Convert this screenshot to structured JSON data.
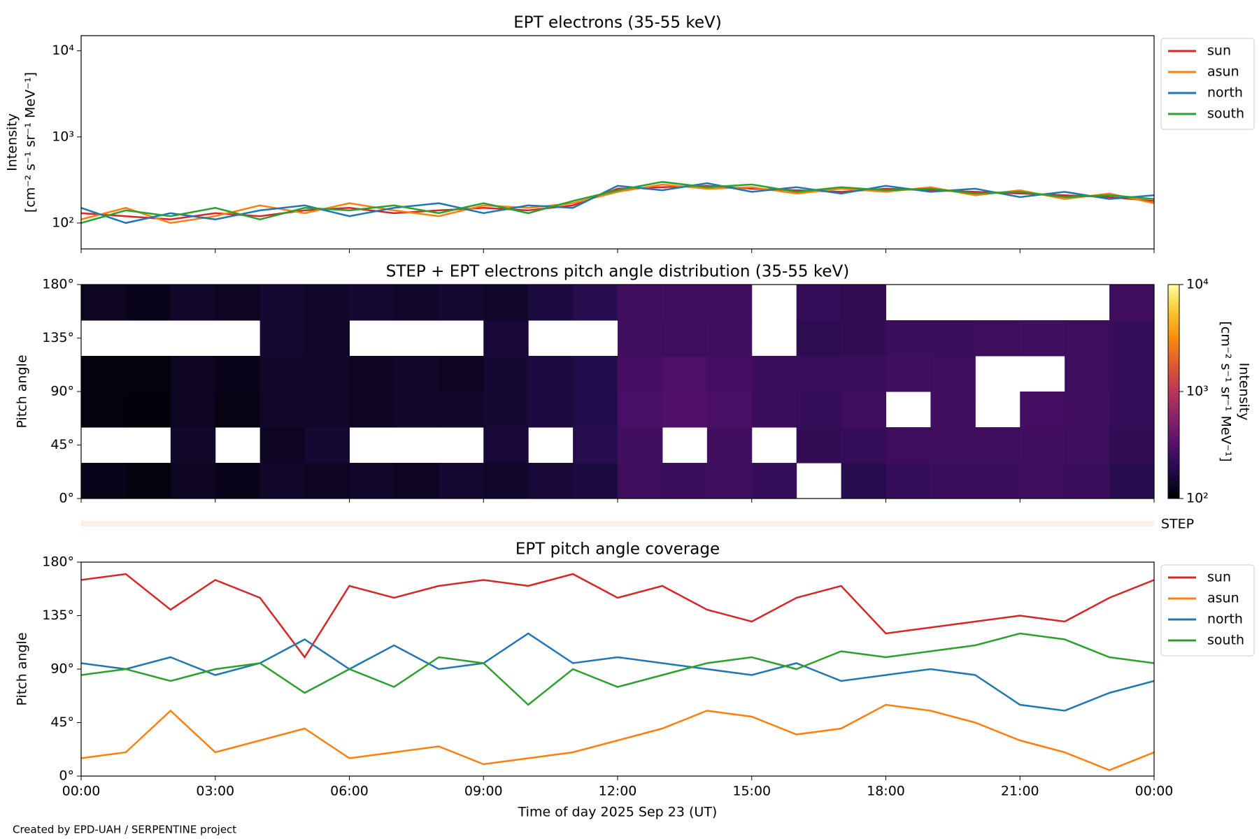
{
  "chart_data": [
    {
      "type": "line",
      "title": "EPT electrons (35-55 keV)",
      "ylabel": [
        "Intensity",
        "[cm⁻² s⁻¹ sr⁻¹ MeV⁻¹]"
      ],
      "log_y": true,
      "ylim": [
        50,
        15000
      ],
      "yticks": [
        {
          "value": 100,
          "label": "10²"
        },
        {
          "value": 1000,
          "label": "10³"
        },
        {
          "value": 10000,
          "label": "10⁴"
        }
      ],
      "xlim": [
        0,
        24
      ],
      "xticks": [
        0,
        3,
        6,
        9,
        12,
        15,
        18,
        21,
        24
      ],
      "x": [
        0,
        1,
        2,
        3,
        4,
        5,
        6,
        7,
        8,
        9,
        10,
        11,
        12,
        13,
        14,
        15,
        16,
        17,
        18,
        19,
        20,
        21,
        22,
        23,
        24
      ],
      "series": [
        {
          "name": "sun",
          "color": "#d62728",
          "values": [
            130,
            120,
            110,
            130,
            120,
            140,
            150,
            130,
            140,
            150,
            140,
            160,
            250,
            260,
            270,
            250,
            240,
            230,
            250,
            240,
            230,
            220,
            210,
            200,
            180
          ]
        },
        {
          "name": "asun",
          "color": "#ff7f0e",
          "values": [
            110,
            150,
            100,
            120,
            160,
            130,
            170,
            140,
            120,
            160,
            150,
            170,
            230,
            280,
            250,
            260,
            220,
            250,
            230,
            260,
            210,
            240,
            190,
            220,
            170
          ]
        },
        {
          "name": "north",
          "color": "#1f77b4",
          "values": [
            150,
            100,
            130,
            110,
            140,
            160,
            120,
            150,
            170,
            130,
            160,
            150,
            270,
            240,
            290,
            230,
            260,
            220,
            270,
            230,
            250,
            200,
            230,
            190,
            210
          ]
        },
        {
          "name": "south",
          "color": "#2ca02c",
          "values": [
            100,
            140,
            120,
            150,
            110,
            150,
            140,
            160,
            130,
            170,
            130,
            180,
            240,
            300,
            260,
            280,
            230,
            260,
            240,
            250,
            220,
            230,
            200,
            210,
            190
          ]
        }
      ]
    },
    {
      "type": "heatmap",
      "title": "STEP + EPT electrons pitch angle distribution (35-55 keV)",
      "ylabel": "Pitch angle",
      "ylim": [
        0,
        180
      ],
      "yticks": [
        {
          "value": 0,
          "label": "0°"
        },
        {
          "value": 45,
          "label": "45°"
        },
        {
          "value": 90,
          "label": "90°"
        },
        {
          "value": 135,
          "label": "135°"
        },
        {
          "value": 180,
          "label": "180°"
        }
      ],
      "xlim": [
        0,
        24
      ],
      "xticks": [
        0,
        3,
        6,
        9,
        12,
        15,
        18,
        21,
        24
      ],
      "x_edges": [
        0,
        1,
        2,
        3,
        4,
        5,
        6,
        7,
        8,
        9,
        10,
        11,
        12,
        13,
        14,
        15,
        16,
        17,
        18,
        19,
        20,
        21,
        22,
        23,
        24
      ],
      "y_edges": [
        0,
        30,
        60,
        90,
        120,
        150,
        180
      ],
      "z": [
        [
          120,
          null,
          110,
          110,
          null,
          130
        ],
        [
          110,
          null,
          105,
          110,
          null,
          120
        ],
        [
          130,
          140,
          130,
          130,
          null,
          140
        ],
        [
          120,
          null,
          115,
          120,
          null,
          130
        ],
        [
          140,
          130,
          140,
          140,
          150,
          150
        ],
        [
          130,
          150,
          140,
          140,
          140,
          140
        ],
        [
          140,
          null,
          130,
          130,
          null,
          150
        ],
        [
          130,
          null,
          140,
          140,
          null,
          140
        ],
        [
          150,
          null,
          140,
          130,
          null,
          150
        ],
        [
          140,
          160,
          150,
          150,
          160,
          140
        ],
        [
          160,
          null,
          170,
          170,
          null,
          170
        ],
        [
          170,
          200,
          190,
          190,
          null,
          200
        ],
        [
          250,
          260,
          280,
          270,
          260,
          250
        ],
        [
          240,
          null,
          300,
          290,
          250,
          260
        ],
        [
          250,
          260,
          280,
          270,
          260,
          260
        ],
        [
          230,
          null,
          240,
          240,
          null,
          null
        ],
        [
          null,
          220,
          230,
          240,
          210,
          230
        ],
        [
          200,
          230,
          250,
          240,
          220,
          220
        ],
        [
          230,
          250,
          null,
          260,
          240,
          null
        ],
        [
          240,
          250,
          260,
          250,
          240,
          null
        ],
        [
          240,
          250,
          null,
          null,
          250,
          null
        ],
        [
          250,
          260,
          270,
          null,
          260,
          null
        ],
        [
          240,
          250,
          260,
          250,
          250,
          null
        ],
        [
          200,
          220,
          230,
          230,
          230,
          250
        ]
      ],
      "colormap": "inferno",
      "colorbar": {
        "label": [
          "Intensity",
          "[cm⁻² s⁻¹ sr⁻¹ MeV⁻¹]"
        ],
        "lim": [
          100,
          10000
        ],
        "ticks": [
          {
            "value": 100,
            "label": "10²"
          },
          {
            "value": 1000,
            "label": "10³"
          },
          {
            "value": 10000,
            "label": "10⁴"
          }
        ]
      }
    },
    {
      "type": "line",
      "title": "EPT pitch angle coverage",
      "ylabel": "Pitch angle",
      "xlabel": "Time of day 2025 Sep 23 (UT)",
      "ylim": [
        0,
        180
      ],
      "yticks": [
        {
          "value": 0,
          "label": "0°"
        },
        {
          "value": 45,
          "label": "45°"
        },
        {
          "value": 90,
          "label": "90°"
        },
        {
          "value": 135,
          "label": "135°"
        },
        {
          "value": 180,
          "label": "180°"
        }
      ],
      "xlim": [
        0,
        24
      ],
      "xticks": [
        {
          "value": 0,
          "label": "00:00"
        },
        {
          "value": 3,
          "label": "03:00"
        },
        {
          "value": 6,
          "label": "06:00"
        },
        {
          "value": 9,
          "label": "09:00"
        },
        {
          "value": 12,
          "label": "12:00"
        },
        {
          "value": 15,
          "label": "15:00"
        },
        {
          "value": 18,
          "label": "18:00"
        },
        {
          "value": 21,
          "label": "21:00"
        },
        {
          "value": 24,
          "label": "00:00"
        }
      ],
      "x": [
        0,
        1,
        2,
        3,
        4,
        5,
        6,
        7,
        8,
        9,
        10,
        11,
        12,
        13,
        14,
        15,
        16,
        17,
        18,
        19,
        20,
        21,
        22,
        23,
        24
      ],
      "series": [
        {
          "name": "sun",
          "color": "#d62728",
          "values": [
            165,
            170,
            140,
            165,
            150,
            100,
            160,
            150,
            160,
            165,
            160,
            170,
            150,
            160,
            140,
            130,
            150,
            160,
            120,
            125,
            130,
            135,
            130,
            150,
            165
          ]
        },
        {
          "name": "asun",
          "color": "#ff7f0e",
          "values": [
            15,
            20,
            55,
            20,
            30,
            40,
            15,
            20,
            25,
            10,
            15,
            20,
            30,
            40,
            55,
            50,
            35,
            40,
            60,
            55,
            45,
            30,
            20,
            5,
            20
          ]
        },
        {
          "name": "north",
          "color": "#1f77b4",
          "values": [
            95,
            90,
            100,
            85,
            95,
            115,
            90,
            110,
            90,
            95,
            120,
            95,
            100,
            95,
            90,
            85,
            95,
            80,
            85,
            90,
            85,
            60,
            55,
            70,
            80
          ]
        },
        {
          "name": "south",
          "color": "#2ca02c",
          "values": [
            85,
            90,
            80,
            90,
            95,
            70,
            90,
            75,
            100,
            95,
            60,
            90,
            75,
            85,
            95,
            100,
            90,
            105,
            100,
            105,
            110,
            120,
            115,
            100,
            95
          ]
        }
      ]
    }
  ],
  "step_label": "STEP",
  "footer": "Created by EPD-UAH / SERPENTINE project"
}
